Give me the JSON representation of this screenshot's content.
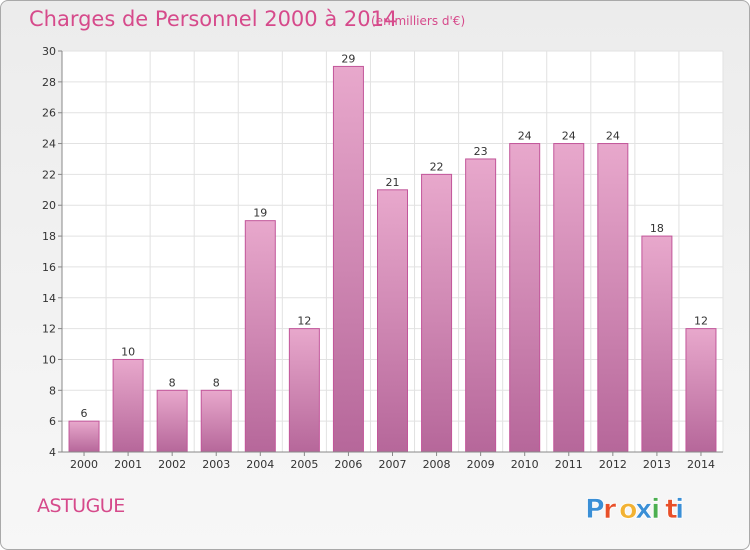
{
  "header": {
    "title": "Charges de Personnel 2000 à 2014",
    "subtitle": "(en milliers d'€)"
  },
  "footer": {
    "commune": "ASTUGUE",
    "brand": "Proxiti",
    "brand_colors": [
      "#3a8fd6",
      "#e8502a",
      "#f2b233",
      "#3a8fd6",
      "#4caf50",
      "#e8502a",
      "#3a8fd6"
    ]
  },
  "colors": {
    "accent": "#d64a8b",
    "bar_top": "#e8a8cc",
    "bar_bottom": "#b6679a"
  },
  "chart_data": {
    "type": "bar",
    "title": "Charges de Personnel 2000 à 2014",
    "subtitle": "(en milliers d'€)",
    "categories": [
      "2000",
      "2001",
      "2002",
      "2003",
      "2004",
      "2005",
      "2006",
      "2007",
      "2008",
      "2009",
      "2010",
      "2011",
      "2012",
      "2013",
      "2014"
    ],
    "values": [
      6,
      10,
      8,
      8,
      19,
      12,
      29,
      21,
      22,
      23,
      24,
      24,
      24,
      18,
      12
    ],
    "ylim": [
      4,
      30
    ],
    "yticks": [
      4,
      6,
      8,
      10,
      12,
      14,
      16,
      18,
      20,
      22,
      24,
      26,
      28,
      30
    ],
    "grid": true
  }
}
